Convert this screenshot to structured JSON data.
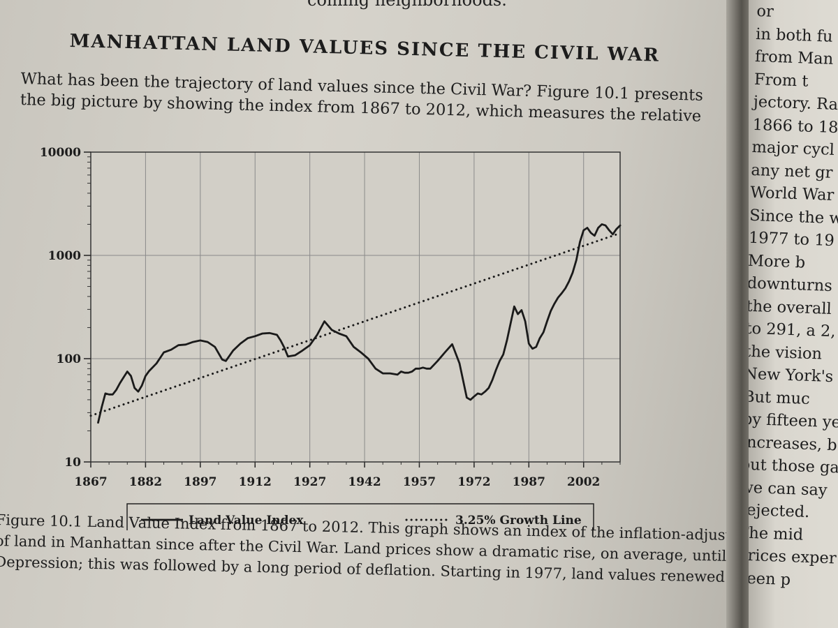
{
  "book": {
    "top_fragment": "coming neighborhoods.",
    "heading": "MANHATTAN LAND VALUES SINCE THE CIVIL WAR",
    "paragraph_lines": [
      "What has been the trajectory of land values since the Civil War? Figure 10.1 presents",
      "the big picture by showing the index from 1867 to 2012, which measures the relative"
    ],
    "caption_lines": [
      "Figure 10.1  Land Value Index from 1867 to 2012. This graph shows an index of the inflation-adjusted price",
      "of land in Manhattan since after the Civil War. Land prices show a dramatic rise, on average, until the Great",
      "Depression; this was followed by a long period of deflation. Starting in 1977, land values renewed their"
    ],
    "right_page_lines": [
      "or",
      "in both fu",
      "from Man",
      "From t",
      "jectory. Ra",
      "1866 to 18",
      "major cycl",
      "any net gr",
      "World War",
      "Since the w",
      "1977 to 19",
      "More b",
      "downturns",
      "the overall",
      "to 291, a 2,",
      "the vision",
      "New York's",
      "But muc",
      "by fifteen ye",
      "increases, b",
      "out those ga",
      "we can say",
      "rejected.",
      "The mid",
      "prices exper",
      "been p"
    ]
  },
  "chart_data": {
    "type": "line",
    "y_scale": "log",
    "ylim": [
      10,
      10000
    ],
    "y_ticks": [
      "10",
      "100",
      "1000",
      "10000"
    ],
    "xlim": [
      1867,
      2012
    ],
    "x_ticks": [
      "1867",
      "1882",
      "1897",
      "1912",
      "1927",
      "1942",
      "1957",
      "1972",
      "1987",
      "2002"
    ],
    "grid": true,
    "legend_position": "bottom",
    "colors": {
      "series": "#1a1a1a",
      "grid": "#8a8a8a",
      "plot_bg": "#d2cfc7"
    },
    "series": [
      {
        "name": "Land Value Index",
        "style": "solid",
        "x": [
          1869,
          1870,
          1871,
          1872,
          1873,
          1874,
          1875,
          1876,
          1877,
          1878,
          1879,
          1880,
          1881,
          1882,
          1883,
          1885,
          1887,
          1889,
          1891,
          1893,
          1895,
          1897,
          1899,
          1901,
          1903,
          1904,
          1906,
          1908,
          1910,
          1912,
          1914,
          1916,
          1918,
          1919,
          1920,
          1921,
          1923,
          1925,
          1927,
          1929,
          1931,
          1933,
          1935,
          1937,
          1939,
          1941,
          1943,
          1945,
          1947,
          1949,
          1951,
          1952,
          1953,
          1954,
          1955,
          1956,
          1957,
          1958,
          1959,
          1960,
          1962,
          1964,
          1966,
          1968,
          1970,
          1971,
          1972,
          1973,
          1974,
          1975,
          1976,
          1977,
          1978,
          1979,
          1980,
          1981,
          1983,
          1984,
          1985,
          1986,
          1987,
          1988,
          1989,
          1990,
          1991,
          1992,
          1993,
          1994,
          1995,
          1996,
          1997,
          1998,
          1999,
          2000,
          2001,
          2002,
          2003,
          2004,
          2005,
          2006,
          2007,
          2008,
          2009,
          2010,
          2011,
          2012
        ],
        "values": [
          24,
          34,
          46,
          45,
          45,
          50,
          58,
          66,
          75,
          68,
          52,
          48,
          55,
          68,
          76,
          90,
          115,
          122,
          135,
          137,
          145,
          150,
          145,
          130,
          98,
          95,
          120,
          140,
          158,
          165,
          175,
          177,
          170,
          150,
          128,
          105,
          108,
          120,
          135,
          170,
          230,
          190,
          175,
          165,
          130,
          115,
          100,
          80,
          72,
          72,
          70,
          75,
          73,
          73,
          75,
          80,
          80,
          82,
          80,
          80,
          95,
          115,
          138,
          90,
          42,
          40,
          43,
          46,
          45,
          48,
          52,
          62,
          78,
          95,
          110,
          150,
          320,
          270,
          295,
          230,
          140,
          125,
          130,
          158,
          180,
          230,
          290,
          340,
          390,
          430,
          480,
          560,
          680,
          900,
          1350,
          1750,
          1850,
          1650,
          1550,
          1850,
          2000,
          1950,
          1750,
          1600,
          1800,
          1950
        ]
      },
      {
        "name": "3.25% Growth Line",
        "style": "dotted",
        "x": [
          1867,
          2012
        ],
        "values": [
          28,
          1640
        ]
      }
    ]
  }
}
